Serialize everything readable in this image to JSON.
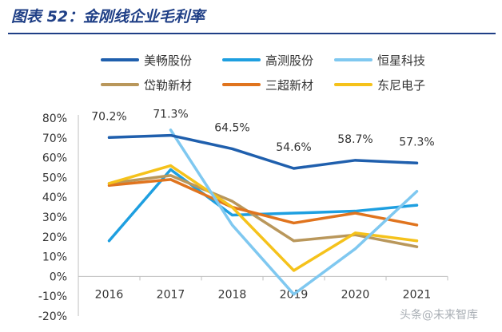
{
  "header": {
    "title": "图表 52：金刚线企业毛利率"
  },
  "watermark": {
    "text": "头条@未来智库"
  },
  "chart_data": {
    "type": "line",
    "title": "图表 52：金刚线企业毛利率",
    "xlabel": "",
    "ylabel": "",
    "x": [
      "2016",
      "2017",
      "2018",
      "2019",
      "2020",
      "2021"
    ],
    "ylim": [
      -20,
      80
    ],
    "ytick_labels": [
      "-20%",
      "-10%",
      "0%",
      "10%",
      "20%",
      "30%",
      "40%",
      "50%",
      "60%",
      "70%",
      "80%"
    ],
    "legend_position": "top",
    "series": [
      {
        "name": "美畅股份",
        "values": [
          70.2,
          71.3,
          64.5,
          54.6,
          58.7,
          57.3
        ],
        "color": "#1f5fad",
        "labels": [
          "70.2%",
          "71.3%",
          "64.5%",
          "54.6%",
          "58.7%",
          "57.3%"
        ]
      },
      {
        "name": "高测股份",
        "values": [
          18,
          54,
          31,
          32,
          33,
          36
        ],
        "color": "#1e9fe0"
      },
      {
        "name": "恒星科技",
        "values": [
          null,
          74,
          26,
          -9,
          14,
          43
        ],
        "color": "#7fc8f0"
      },
      {
        "name": "岱勒新材",
        "values": [
          47,
          51,
          38,
          18,
          21,
          15
        ],
        "color": "#b9975b"
      },
      {
        "name": "三超新材",
        "values": [
          46,
          49,
          35,
          27,
          32,
          26
        ],
        "color": "#e0741e"
      },
      {
        "name": "东尼电子",
        "values": [
          47,
          56,
          35,
          3,
          22,
          18
        ],
        "color": "#f5c21b"
      }
    ]
  }
}
